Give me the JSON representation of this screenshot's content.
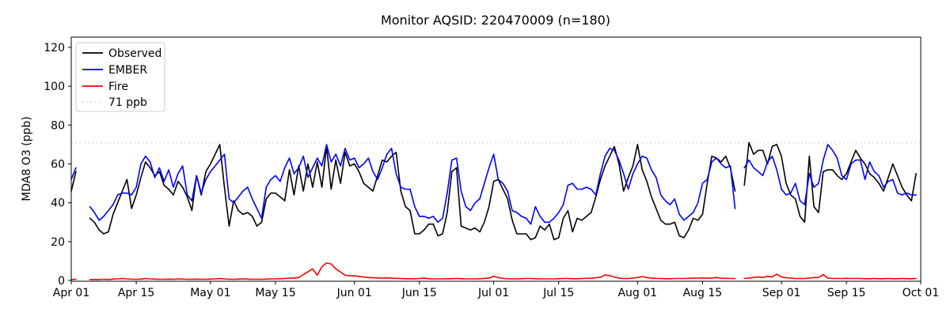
{
  "title": "Monitor AQSID: 220470009 (n=180)",
  "chart_data": {
    "type": "line",
    "title": "Monitor AQSID: 220470009 (n=180)",
    "xlabel": "",
    "ylabel": "MDA8 O3 (ppb)",
    "ylim": [
      -1,
      126
    ],
    "yticks": [
      0,
      20,
      40,
      60,
      80,
      100,
      120
    ],
    "xticks": [
      {
        "label": "Apr 01",
        "day": 0
      },
      {
        "label": "Apr 15",
        "day": 14
      },
      {
        "label": "May 01",
        "day": 30
      },
      {
        "label": "May 15",
        "day": 44
      },
      {
        "label": "Jun 01",
        "day": 61
      },
      {
        "label": "Jun 15",
        "day": 75
      },
      {
        "label": "Jul 01",
        "day": 91
      },
      {
        "label": "Jul 15",
        "day": 105
      },
      {
        "label": "Aug 01",
        "day": 122
      },
      {
        "label": "Aug 15",
        "day": 136
      },
      {
        "label": "Sep 01",
        "day": 153
      },
      {
        "label": "Sep 15",
        "day": 167
      },
      {
        "label": "Oct 01",
        "day": 183
      }
    ],
    "x_unit": "daily values; index 0 = Apr 01, last index 182 = Sep 30",
    "grid": false,
    "legend_position": "upper left",
    "threshold": {
      "value": 71,
      "label": "71 ppb",
      "color": "#d3d3d3",
      "style": "dotted"
    },
    "series": [
      {
        "name": "Observed",
        "color": "#000000",
        "values": [
          46,
          56,
          null,
          null,
          32,
          30,
          26,
          24,
          25,
          34,
          40,
          46,
          52,
          37,
          44,
          53,
          61,
          58,
          54,
          56,
          49,
          47,
          44,
          51,
          48,
          43,
          36,
          54,
          44,
          56,
          60,
          65,
          70,
          48,
          28,
          41,
          36,
          34,
          35,
          33,
          28,
          30,
          42,
          45,
          45,
          43,
          41,
          57,
          44,
          59,
          46,
          60,
          48,
          61,
          48,
          69,
          47,
          62,
          50,
          66,
          59,
          60,
          56,
          50,
          48,
          46,
          54,
          62,
          61,
          64,
          66,
          46,
          38,
          36,
          24,
          24,
          26,
          29,
          29,
          23,
          24,
          35,
          56,
          58,
          28,
          27,
          26,
          27,
          25,
          30,
          38,
          51,
          52,
          47,
          42,
          31,
          24,
          24,
          24,
          21,
          22,
          28,
          26,
          29,
          21,
          22,
          32,
          36,
          25,
          32,
          31,
          33,
          35,
          43,
          52,
          59,
          64,
          69,
          60,
          46,
          53,
          59,
          70,
          57,
          51,
          43,
          37,
          31,
          29,
          29,
          30,
          23,
          22,
          26,
          32,
          31,
          34,
          50,
          64,
          63,
          61,
          64,
          58,
          46,
          null,
          49,
          71,
          65,
          67,
          67,
          60,
          69,
          70,
          64,
          50,
          44,
          42,
          33,
          30,
          64,
          38,
          35,
          56,
          57,
          57,
          54,
          52,
          55,
          61,
          67,
          63,
          60,
          55,
          53,
          50,
          46,
          53,
          60,
          54,
          48,
          44,
          41,
          55
        ]
      },
      {
        "name": "EMBER",
        "color": "#0000ff",
        "values": [
          52,
          58,
          null,
          null,
          38,
          35,
          31,
          33,
          36,
          39,
          44,
          45,
          45,
          44,
          48,
          60,
          64,
          61,
          53,
          58,
          51,
          57,
          48,
          55,
          59,
          44,
          41,
          54,
          45,
          52,
          56,
          59,
          62,
          65,
          42,
          40,
          43,
          46,
          48,
          42,
          37,
          32,
          48,
          52,
          54,
          51,
          58,
          63,
          55,
          58,
          64,
          53,
          58,
          63,
          59,
          70,
          61,
          65,
          59,
          68,
          62,
          63,
          58,
          60,
          63,
          56,
          52,
          58,
          65,
          68,
          55,
          48,
          47,
          47,
          38,
          33,
          33,
          32,
          33,
          30,
          32,
          45,
          62,
          63,
          46,
          38,
          36,
          40,
          42,
          50,
          58,
          65,
          52,
          50,
          46,
          36,
          35,
          33,
          32,
          29,
          38,
          33,
          30,
          30,
          32,
          35,
          39,
          49,
          50,
          47,
          47,
          48,
          47,
          44,
          55,
          64,
          68,
          67,
          62,
          55,
          47,
          55,
          60,
          64,
          63,
          57,
          53,
          44,
          41,
          39,
          42,
          34,
          31,
          33,
          35,
          40,
          50,
          52,
          61,
          63,
          60,
          58,
          59,
          37,
          null,
          58,
          62,
          58,
          56,
          54,
          61,
          64,
          57,
          47,
          44,
          45,
          50,
          41,
          39,
          55,
          48,
          50,
          62,
          70,
          67,
          63,
          54,
          52,
          60,
          62,
          62,
          52,
          61,
          56,
          54,
          48,
          51,
          52,
          45,
          44,
          45,
          44,
          44
        ]
      },
      {
        "name": "Fire",
        "color": "#ff0000",
        "values": [
          0.5,
          0.6,
          null,
          null,
          0.5,
          0.5,
          0.5,
          0.6,
          0.5,
          0.7,
          0.8,
          1,
          0.8,
          0.6,
          0.6,
          0.7,
          1,
          0.8,
          0.7,
          0.6,
          0.6,
          0.7,
          0.6,
          0.8,
          0.7,
          0.6,
          0.6,
          0.7,
          0.6,
          0.6,
          0.7,
          0.8,
          1,
          0.8,
          0.6,
          0.6,
          0.7,
          0.8,
          0.7,
          0.6,
          0.6,
          0.6,
          0.7,
          0.8,
          0.8,
          0.9,
          1,
          1.2,
          1.2,
          1.5,
          3,
          4.5,
          6,
          2.7,
          7,
          9,
          8.5,
          6,
          4.4,
          2.7,
          2.4,
          2.4,
          2,
          1.8,
          1.5,
          1.4,
          1.3,
          1.2,
          1.3,
          1.2,
          1,
          1,
          0.9,
          0.9,
          0.8,
          1,
          1.2,
          0.9,
          0.8,
          0.8,
          0.8,
          0.9,
          0.9,
          1,
          0.9,
          0.8,
          0.8,
          0.8,
          0.9,
          1,
          1.2,
          2.2,
          1.5,
          1,
          0.9,
          0.8,
          0.8,
          0.9,
          1,
          1,
          0.9,
          0.8,
          0.8,
          0.8,
          0.8,
          0.9,
          1,
          1,
          0.9,
          0.9,
          1,
          1.1,
          1.2,
          1.4,
          1.6,
          2.8,
          2.5,
          1.8,
          1.2,
          1,
          1,
          1.2,
          1.5,
          2,
          1.5,
          1.2,
          1,
          1,
          0.9,
          0.9,
          1,
          1,
          1,
          1.1,
          1.2,
          1.2,
          1.3,
          1.2,
          1.2,
          1.5,
          1.2,
          1.1,
          1,
          1,
          null,
          1,
          1.2,
          1.5,
          1.8,
          1.5,
          2.2,
          1.8,
          3.2,
          1.8,
          1.4,
          1.2,
          1,
          1,
          1,
          1.2,
          1.5,
          1.5,
          3,
          1.2,
          1,
          1,
          1,
          1.1,
          1,
          1,
          1,
          0.9,
          0.9,
          1,
          0.9,
          0.9,
          1,
          0.9,
          0.9,
          1,
          0.9,
          0.9,
          1
        ]
      }
    ],
    "legend": [
      "Observed",
      "EMBER",
      "Fire",
      "71 ppb"
    ]
  }
}
